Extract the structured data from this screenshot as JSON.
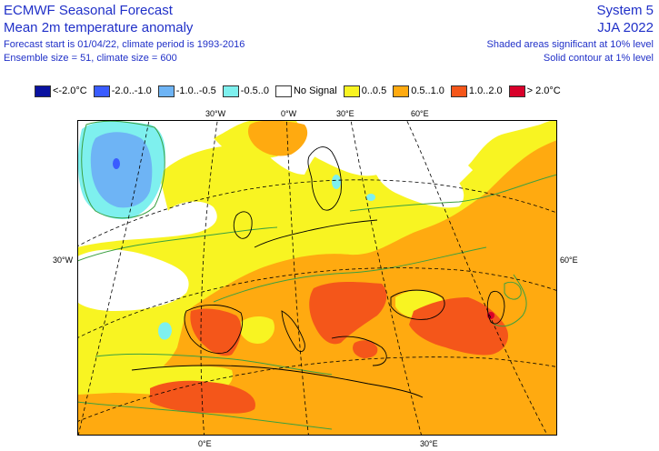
{
  "header": {
    "title": "ECMWF Seasonal Forecast",
    "subtitle": "Mean 2m temperature anomaly",
    "line3": "Forecast start is 01/04/22, climate period is 1993-2016",
    "line4": "Ensemble size = 51, climate size = 600",
    "system": "System 5",
    "season": "JJA 2022",
    "significance1": "Shaded areas significant at 10% level",
    "significance2": "Solid contour at 1% level"
  },
  "legend": [
    {
      "label": "<-2.0°C",
      "color": "#0a12a0"
    },
    {
      "label": "-2.0..-1.0",
      "color": "#3a5cff"
    },
    {
      "label": "-1.0..-0.5",
      "color": "#6eb4f5"
    },
    {
      "label": "-0.5..0",
      "color": "#7ef0ee"
    },
    {
      "label": "No Signal",
      "color": "#ffffff"
    },
    {
      "label": "0..0.5",
      "color": "#f8f422"
    },
    {
      "label": "0.5..1.0",
      "color": "#ffaa10"
    },
    {
      "label": "1.0..2.0",
      "color": "#f4561a"
    },
    {
      "label": "> 2.0°C",
      "color": "#d8002a"
    }
  ],
  "axis_labels": {
    "top": [
      "30°W",
      "0°W",
      "30°E",
      "60°E"
    ],
    "bottom": [
      "0°E",
      "30°E"
    ],
    "left": [
      "30°W"
    ],
    "right": [
      "60°E"
    ]
  },
  "colors": {
    "contour": "#3aa040",
    "coast": "#000000",
    "grid": "#000000"
  }
}
